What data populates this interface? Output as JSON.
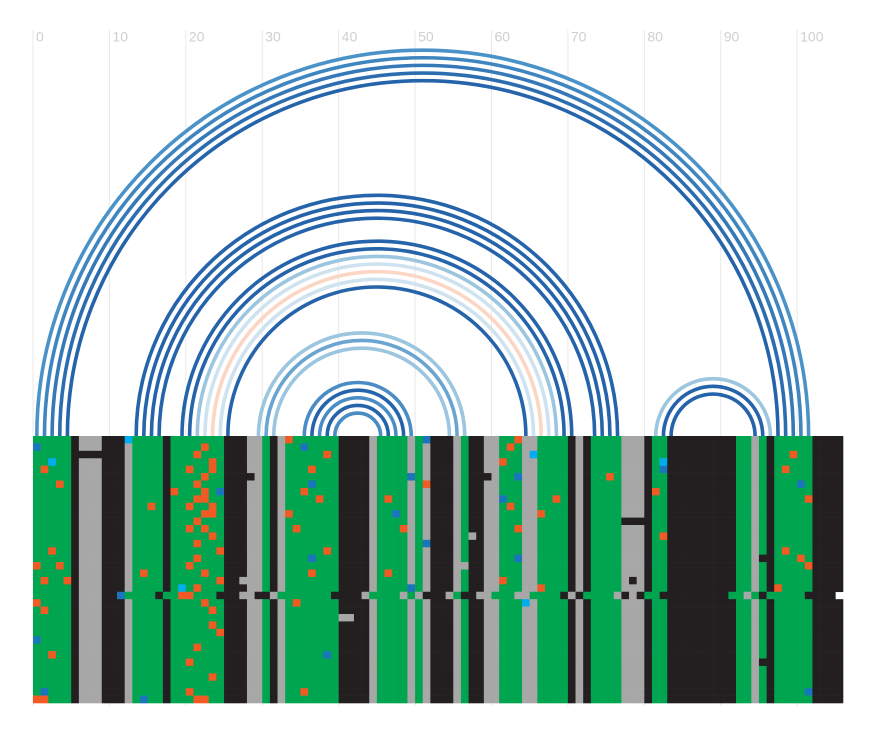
{
  "chart_data": {
    "type": "arc",
    "xlim": [
      0,
      106
    ],
    "xticks": [
      0,
      10,
      20,
      30,
      40,
      50,
      60,
      70,
      80,
      90,
      100
    ],
    "grid": true,
    "arcs": [
      {
        "from": 1,
        "to": 102,
        "color": "#4a93c8"
      },
      {
        "from": 2,
        "to": 101,
        "color": "#3f86c0"
      },
      {
        "from": 3,
        "to": 100,
        "color": "#3579b8"
      },
      {
        "from": 4,
        "to": 99,
        "color": "#2c6db0"
      },
      {
        "from": 5,
        "to": 98,
        "color": "#2563aa"
      },
      {
        "from": 14,
        "to": 77,
        "color": "#2563aa"
      },
      {
        "from": 15,
        "to": 76,
        "color": "#2563aa"
      },
      {
        "from": 16,
        "to": 75,
        "color": "#2563aa"
      },
      {
        "from": 17,
        "to": 74,
        "color": "#2563aa"
      },
      {
        "from": 20,
        "to": 71,
        "color": "#2563aa"
      },
      {
        "from": 21,
        "to": 70,
        "color": "#2563aa"
      },
      {
        "from": 22,
        "to": 69,
        "color": "#9cc5e0"
      },
      {
        "from": 23,
        "to": 68,
        "color": "#cfe2f0"
      },
      {
        "from": 24,
        "to": 67,
        "color": "#fcd6c4"
      },
      {
        "from": 25,
        "to": 66,
        "color": "#cfe2f0"
      },
      {
        "from": 26,
        "to": 65,
        "color": "#2563aa"
      },
      {
        "from": 30,
        "to": 57,
        "color": "#9cc5e0"
      },
      {
        "from": 31,
        "to": 56,
        "color": "#6aa5d2"
      },
      {
        "from": 32,
        "to": 55,
        "color": "#9cc5e0"
      },
      {
        "from": 36,
        "to": 50,
        "color": "#4a8cc4"
      },
      {
        "from": 37,
        "to": 49,
        "color": "#2563aa"
      },
      {
        "from": 38,
        "to": 48,
        "color": "#4a8cc4"
      },
      {
        "from": 39,
        "to": 47,
        "color": "#2563aa"
      },
      {
        "from": 40,
        "to": 46,
        "color": "#4a8cc4"
      },
      {
        "from": 82,
        "to": 97,
        "color": "#9cc5e0"
      },
      {
        "from": 83,
        "to": 96,
        "color": "#2563aa"
      },
      {
        "from": 84,
        "to": 95,
        "color": "#2563aa"
      }
    ],
    "alignment": {
      "palette": {
        "G": "#00a550",
        "K": "#231f20",
        "A": "#a7a7a7",
        "O": "#f15a22",
        "B": "#1a75bc",
        "C": "#00aeef"
      },
      "rows": [
        "GGGGGKAAAKKKCGGGGKGGGGGGGKKKAAGKAOGGGGGGKKKKAGGGGAGBKKKAGKKAAGGOAAGGGGKAKGGGGAAAKGGKKKKKKKKKGGAGKGGGGGKKKK",
        "BGGGGKAAAKKKAGGGGKGGGGOGGKKKAAGKAGGBGGGGKKKKAGGGGAGAKKKAGKKAAGOGAAGGGGKAKGGGGAAAKGGKKKKKKKKKGGAGKGGGGGKKKK",
        "GGGGGKKKKKKKAGGGGKGGGOGGGKKKAAGKAGGGGGOGKKKKAGGGGAGAKKKAGKKAAGGGACGGGGKAKGGGGAAAKGGKKKKKKKKKGGAGKGGOGGKKKK",
        "GGCGGKAAAKKKAGGGGKGGGGGOGKKKAAGKAGGGGGGGKKKKAGGGGAGAKKKAGKKAAOGGAAGGGGKAKGGGGAAAKGCKKKKKKKKKGGAGKGGGGGKKKK",
        "GOGGGKAAAKKKAGGGGKGGOGGOGKKKAAGKAGGGOGGGKKKKAGGGGAGAKKKAGKKAAGGGAAGGGGKAKGGGGAAAKGBKKKKKKKKKGGAGKGOGGGKKKK",
        "GGGGGKAAAKKKAGGGGKGGGGOGGKKKKAGKAGGGGGGGKKKKAGGGGBGAKKKAGKKKAGGBAAGGGGKAKGGOGAAAKGGKKKKKKKKKGGAGKGGGGGKKKK",
        "GGGOGKAAAKKKAGGGGKGGGOGGGKKKAAGKAGGGBGGGKKKKAGGGGAGOKKKAGKKAAGGGAAGGGGKAKGGGGAAAKGGKKKKKKKKKGGAGKGGGBGKKKK",
        "GGGGGKAAAKKKAGGGGKOGGGOGBKKKAAGKAGGOGGGGKKKKAGGGGAGAKKKAGKKAAGGGAAGGGGKAKGGGGAAAKOGKKKKKKKKKGGAGKGGGGGKKKK",
        "GGGGGKAAAKKKAGGGGKGGGOOGGKKKAAGKAGGGGOGGKKKKAGOGGAGAKKKAGKKAABGGAAGGOGKAKGGGGAAAKGGKKKKKKKKKGGAGKGGGGOKKKK",
        "GGGGGKAAAKKKAGGOGKGGOGGOGKKKAAGKAGGGGGGGKKKKAGGGGAGAKKKAGKKAAGOGAAGGGGKAKGGGGAAAKGGKKKKKKKKKGGAGKGGGGGKKKK",
        "GGGGGKAAAKKKAGGGGKGGGGOOGKKKAAGKAOGGGGGGKKKKAGGBGAGAKKKAGKKAAGGGAAOGGGKAKGGGGAAAKGGKKKKKKKKKGGAGKGGGGGKKKK",
        "GGGGGKAAAKKKAGGGGKGGGOGGGKKKAAGKAGGGGGGGKKKKAGGGGAGAKKKAGKKAAGGGAAGGGGKAKGGGGKKKKGGKKKKKKKKKGGAGKGGGGGKKKK",
        "GGGGGKAAAKKKAGGGGKGGOGOGGKKKAAGKAGOGGGGGKKKKAGGGOAGAKKKAGKKAAGGOAAGGGGKAKGGGGAAAKGGKKKKKKKKKGGAGKGGGGGKKKK",
        "GGGGGKAAAKKKAGGGGKGGGGGOGKKKAAGKAGGGGGGGKKKKAGGGGAGAKKKAGAKAAGGGAAGGGGKAKGGGGAAAKGOKKKKKKKKKGGAGKGGGGGKKKK",
        "GGGGGKAAAKKKAGGGGKGGGOGGGKKKAAGKAGGGGGGGKKKKAGGGGAGBKKKAGKKAAGGGAAGGGGKAKGGGGAAAKGGKKKKKKKKKGGAGKGGGGGKKKK",
        "GGOGGKAAAKKKAGGGGKGGGGGGOKKKAAGKAGGGGGOGKKKKAGGGGAGAKKKAGKKAAGGGAAGGGGKAKGGGGAAAKGGKKKKKKKKKGGAGKGOGGGKKKK",
        "GGGGGKAAAKKKAGGGGKGGGOGGGKKKAAGKAGGGBGGGKKKKAGGGGAGAKKKAGKKAAGGBAAGGGGKAKGGGGAAAKGGKKKKKKKKKGGAKKGGGOGKKKK",
        "OGGOGKAAAKKKAGGGGKGGOGGGGKKKAAGKAGGGGGGGKKKKAGGGGAGAKKKAAKKAAGGGAAGGGGKAKGGGGAAAKGGKKKKKKKKKGGAGKGGGGOKKKK",
        "GGGGGKAAAKKKAGOGGKGGGGOGGKKKAAGKAGGGOGGGKKKKAGOGGAGAKKKAGKKAAGGGAAGGGGKAKGGGGAAAKGGKKKKKKKKKGGAGKGGGGGKKKK",
        "GOGGOKAAAKKKAGGGGKGGGGGGOKKAAAGKAGGGGGGGKKKKAGGGGAGAKKKAGKKAAOGGAAGGGGKAKGGGGAKAKGGKKKKKKKKKGGAGKGGGGGKKKK",
        "GGGGGKAAAKKKAGGGGKGCGOGGGKKKAAGKAGGGGGGGKKKKAGGGGBGAKKKAGKKAAGGGAAOGGGKAKGGGGAAAKGGKKKKKKKKKGGAGKOGGGGKKKK",
        "GGGGGKAAAKKBGGGGKGGOOGGGKKKAAKKAGGGGGGGKKKKAGGGGAGAKKKAGKKAAGGGAAGGGGKAKGGGGAKAKGGKKKKKKKKKGGAGKGGGGGKKKK",
        "OGGGGKAAAKKKAGGGGKGGGGOGGKKKAAGKAGOGGGGGKKKKAGGGGAGAKKKAGKKAAGGGCAGGGGKAKGGGGAAAKGGKKKKKKKKKGGAGKGGGGGKKKK",
        "GOGGGKAAAKKKAGGGGKGGGGGOGKKKAAGKAGGGGGGGKKKKAGGGGAGAKKKAGKKAAGGGAAGGGGKAKGGGGAAAKGGKKKKKKKKKGGAGKGGGGGKKKK",
        "GGGGGKAAAKKKAGGGGKGGGGGGGKKKAAGKAGGGGGGGAAKKAGGGGAGAKKKAGKKAAGGGAAGGGGKAKGGGGAAAKGGKKKKKKKKKGGAGKGGGGGKKKK",
        "GGGGGKAAAKKKAGGGGKGGGGGOGKKKAAGKAGGGGGGGKKKKAGGGGAGAKKKAGKKAAGGGAAGGGGKAKGGGGAAAKGGKKKKKKKKKGGAGKGGGGGKKKK",
        "GGGGGKAAAKKKAGGGGKGGGGGGOKKKAAGKAGGGGGGGKKKKAGGGGAGAKKKAGKKAAGGGAAGGGGKAKGGGGAAAKGGKKKKKKKKKGGAGKGGGGGKKKK",
        "BGGGGKAAAKKKAGGGGKGGGGGGGKKKAAGKAGGGGGGGKKKKAGGGGAGAKKKAGKKAAGGGAAGGGGKAKGGGGAAAKGGKKKKKKKKKGGAGKGGGGGKKKK",
        "GGGGGKAAAKKKAGGGGKGGGOGGGKKKAAGKAGGGGGGGKKKKAGGGGAGAKKKAGKKAAGGGAAGGGGKAKGGGGAAAKGGKKKKKKKKKGGAGKGGGGGKKKK",
        "GGOGGKAAAKKKAGGGGKGGGGGGGKKKAAGKAGGGGGBGKKKKAGGGGAGAKKKAGKKAAGGGAAGGGGKAKGGGGAAAKGGKKKKKKKKKGGAGKGGGGGKKKK",
        "GGGGGKAAAKKKAGGGGKGGOGGGGKKKAAGKAGGGGGGGKKKKAGGGGAGAKKKAGKKAAGGGAAGGGGKAKGGGGAAAKGGKKKKKKKKKGGAKKGGGGGKKKK",
        "GGGGGKAAAKKKAGGGGKGGGGGGGKKKAAGKAGGGGGGGKKKKAGGGGAGAKKKAGKKAAGGGAAGGGGKAKGGGGAAAKGGKKKKKKKKKGGAGKGGGGGKKKK",
        "GGGGGKAAAKKKAGGGGKGGGGGOGKKKAAGKAGGGGGGGKKKKAGGGGAGAKKKAGKKAAGGGAAGGGGKAKGGGGAAAKGGKKKKKKKKKGGAGKGGGGGKKKK",
        "GGGGGKAAAKKKAGGGGKGGGGGGGKKKAAGKAGGGGGGGKKKKAGGGGAGAKKKAGKKAAGGGAAGGGGKAKGGGGAAAKGGKKKKKKKKKGGAGKGGGGGKKKK",
        "GBGGGKAAAKKKAGGGGKGGOGGGGKKKAAGKAGGOGGGGKKKKAGGGGAGAKKKAGKKAAGGGAAGGGGKAKGGGGAAAKGGKKKKKKKKKGGAGKGGGGBKKKK",
        "OOGGGKAAAKKKAGBGGKGGGOOGGKKKAAGKAGGGGGGGKKKKAGGGGAGAKKKAGKKAAGGGAAGGGGKAKGGGGAAAKGGKKKKKKKKKGGAGKGGGGGKKKK"
      ]
    }
  }
}
